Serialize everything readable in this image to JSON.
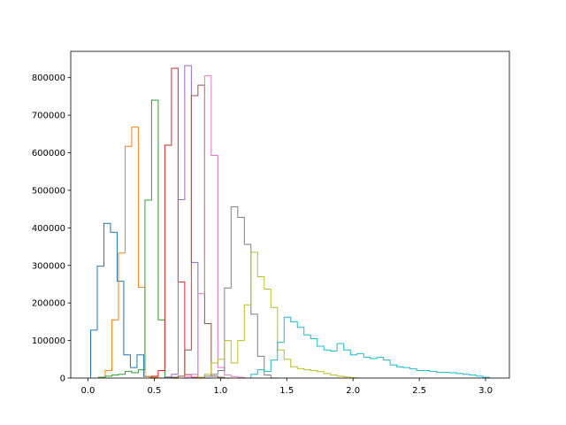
{
  "chart_data": {
    "type": "histogram",
    "title": "",
    "xlabel": "",
    "ylabel": "",
    "xlim": [
      -0.13,
      3.18
    ],
    "ylim": [
      0,
      870000
    ],
    "grid": false,
    "legend": "none",
    "x_ticks": [
      {
        "value": 0.0,
        "label": "0.0"
      },
      {
        "value": 0.5,
        "label": "0.5"
      },
      {
        "value": 1.0,
        "label": "1.0"
      },
      {
        "value": 1.5,
        "label": "1.5"
      },
      {
        "value": 2.0,
        "label": "2.0"
      },
      {
        "value": 2.5,
        "label": "2.5"
      },
      {
        "value": 3.0,
        "label": "3.0"
      }
    ],
    "y_ticks": [
      {
        "value": 0,
        "label": "0"
      },
      {
        "value": 100000,
        "label": "100000"
      },
      {
        "value": 200000,
        "label": "200000"
      },
      {
        "value": 300000,
        "label": "300000"
      },
      {
        "value": 400000,
        "label": "400000"
      },
      {
        "value": 500000,
        "label": "500000"
      },
      {
        "value": 600000,
        "label": "600000"
      },
      {
        "value": 700000,
        "label": "700000"
      },
      {
        "value": 800000,
        "label": "800000"
      }
    ],
    "series": [
      {
        "color": "#1f77b4",
        "edges": [
          0.02,
          0.07,
          0.12,
          0.17,
          0.22,
          0.27,
          0.32,
          0.37,
          0.42,
          0.47,
          0.52
        ],
        "counts": [
          128000,
          298000,
          412000,
          388000,
          258000,
          62000,
          28000,
          62000,
          4000,
          0
        ]
      },
      {
        "color": "#ff7f0e",
        "edges": [
          0.08,
          0.13,
          0.18,
          0.23,
          0.28,
          0.33,
          0.38,
          0.43,
          0.48,
          0.53,
          0.58
        ],
        "counts": [
          2000,
          20000,
          155000,
          333000,
          617000,
          668000,
          242000,
          4000,
          2000,
          0
        ]
      },
      {
        "color": "#2ca02c",
        "edges": [
          0.08,
          0.13,
          0.18,
          0.23,
          0.28,
          0.33,
          0.38,
          0.43,
          0.48,
          0.53,
          0.58,
          0.63,
          0.68
        ],
        "counts": [
          2000,
          5000,
          8000,
          10000,
          18000,
          14000,
          22000,
          474000,
          740000,
          155000,
          2000,
          0
        ]
      },
      {
        "color": "#d62728",
        "edges": [
          0.48,
          0.53,
          0.58,
          0.63,
          0.68,
          0.73,
          0.78,
          0.83,
          0.88
        ],
        "counts": [
          5000,
          20000,
          620000,
          825000,
          256000,
          9000,
          2000,
          0
        ]
      },
      {
        "color": "#9467bd",
        "edges": [
          0.58,
          0.63,
          0.68,
          0.73,
          0.78,
          0.83,
          0.88,
          0.93
        ],
        "counts": [
          3000,
          10000,
          475000,
          832000,
          308000,
          2000,
          0
        ]
      },
      {
        "color": "#8c564b",
        "edges": [
          0.63,
          0.68,
          0.73,
          0.78,
          0.83,
          0.88,
          0.93,
          0.98,
          1.03,
          1.08
        ],
        "counts": [
          2000,
          5000,
          75000,
          752000,
          780000,
          145000,
          5000,
          2000,
          0
        ]
      },
      {
        "color": "#e377c2",
        "edges": [
          0.73,
          0.78,
          0.83,
          0.88,
          0.93,
          0.98,
          1.03,
          1.08,
          1.13,
          1.18,
          1.23
        ],
        "counts": [
          3000,
          10000,
          225000,
          805000,
          593000,
          28000,
          8000,
          4000,
          2000,
          0
        ]
      },
      {
        "color": "#7f7f7f",
        "edges": [
          0.83,
          0.88,
          0.93,
          0.98,
          1.03,
          1.08,
          1.13,
          1.18,
          1.23,
          1.28,
          1.33,
          1.38,
          1.43
        ],
        "counts": [
          2000,
          5000,
          10000,
          20000,
          240000,
          456000,
          428000,
          356000,
          170000,
          58000,
          8000,
          0
        ]
      },
      {
        "color": "#bcbd22",
        "edges": [
          0.83,
          0.88,
          0.93,
          0.98,
          1.03,
          1.08,
          1.13,
          1.18,
          1.23,
          1.28,
          1.33,
          1.38,
          1.43,
          1.48,
          1.53,
          1.58,
          1.63,
          1.68,
          1.73,
          1.78,
          1.83,
          1.88,
          1.93,
          1.98,
          2.03
        ],
        "counts": [
          2000,
          10000,
          40000,
          50000,
          100000,
          40000,
          100000,
          195000,
          335000,
          270000,
          237000,
          188000,
          75000,
          50000,
          30000,
          25000,
          22000,
          20000,
          17000,
          12000,
          8000,
          5000,
          3000,
          1000
        ]
      },
      {
        "color": "#17becf",
        "edges": [
          1.23,
          1.28,
          1.33,
          1.38,
          1.43,
          1.48,
          1.53,
          1.58,
          1.63,
          1.68,
          1.73,
          1.78,
          1.83,
          1.88,
          1.93,
          1.98,
          2.03,
          2.08,
          2.13,
          2.18,
          2.23,
          2.28,
          2.33,
          2.38,
          2.43,
          2.48,
          2.53,
          2.58,
          2.63,
          2.68,
          2.73,
          2.78,
          2.83,
          2.88,
          2.93,
          2.98,
          3.03
        ],
        "counts": [
          10000,
          22000,
          18000,
          48000,
          95000,
          162000,
          150000,
          135000,
          115000,
          105000,
          85000,
          75000,
          72000,
          92000,
          75000,
          62000,
          65000,
          55000,
          52000,
          55000,
          48000,
          35000,
          30000,
          28000,
          25000,
          20000,
          20000,
          18000,
          15000,
          15000,
          14000,
          12000,
          10000,
          8000,
          5000,
          2000
        ]
      }
    ]
  }
}
